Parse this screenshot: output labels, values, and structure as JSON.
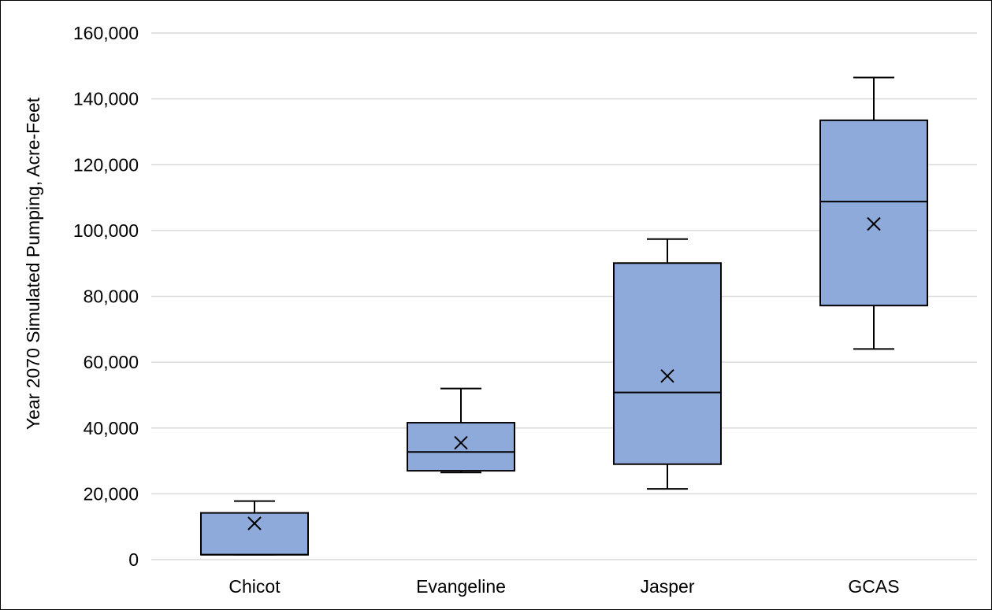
{
  "chart_data": {
    "type": "box",
    "ylabel": "Year 2070 Simulated Pumping, Acre-Feet",
    "xlabel": "",
    "ylim": [
      0,
      160000
    ],
    "yticks": [
      0,
      20000,
      40000,
      60000,
      80000,
      100000,
      120000,
      140000,
      160000
    ],
    "ytick_labels": [
      "0",
      "20,000",
      "40,000",
      "60,000",
      "80,000",
      "100,000",
      "120,000",
      "140,000",
      "160,000"
    ],
    "grid": true,
    "categories": [
      "Chicot",
      "Evangeline",
      "Jasper",
      "GCAS"
    ],
    "boxes": [
      {
        "category": "Chicot",
        "min": 1500,
        "q1": 1500,
        "median": 1500,
        "q3": 14200,
        "max": 17800,
        "mean": 11000
      },
      {
        "category": "Evangeline",
        "min": 26500,
        "q1": 27000,
        "median": 32700,
        "q3": 41600,
        "max": 52000,
        "mean": 35500
      },
      {
        "category": "Jasper",
        "min": 21500,
        "q1": 29000,
        "median": 50800,
        "q3": 90100,
        "max": 97400,
        "mean": 55800
      },
      {
        "category": "GCAS",
        "min": 64000,
        "q1": 77200,
        "median": 108800,
        "q3": 133500,
        "max": 146500,
        "mean": 102000
      }
    ],
    "colors": {
      "box_fill": "#8eaadb",
      "box_stroke": "#000000",
      "grid": "#d9d9d9"
    }
  }
}
